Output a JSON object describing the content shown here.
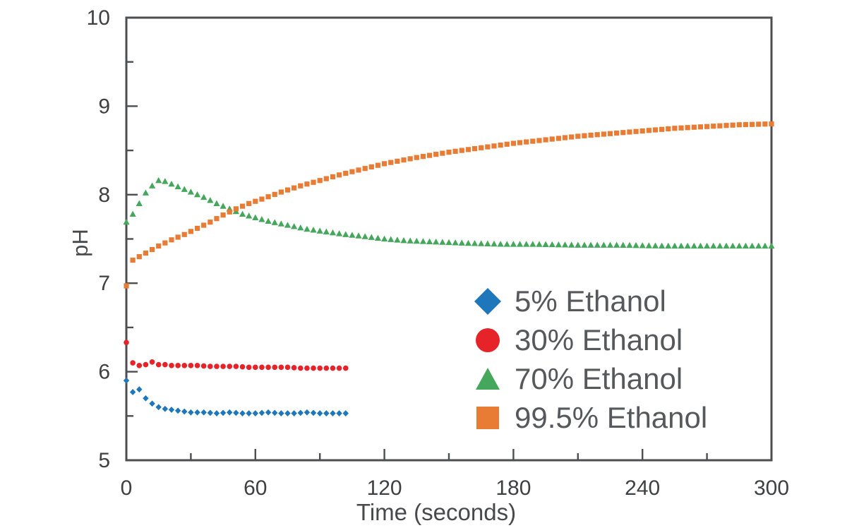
{
  "chart_data": {
    "type": "scatter",
    "title": "",
    "xlabel": "Time (seconds)",
    "ylabel": "pH",
    "xlim": [
      0,
      300
    ],
    "ylim": [
      5,
      10
    ],
    "x_major_ticks": [
      0,
      60,
      120,
      180,
      240,
      300
    ],
    "x_minor_ticks": [
      30,
      90,
      150,
      210,
      270
    ],
    "y_major_ticks": [
      10,
      9,
      8,
      7,
      6,
      5
    ],
    "y_minor_ticks": [
      9.5,
      8.5,
      7.5,
      6.5,
      5.5
    ],
    "grid": false,
    "legend_position": "inside lower right",
    "marker_interval_seconds": 3,
    "axis_color": "#4d4e50",
    "tick_label_color": "#3f4042",
    "legend_text_color": "#57585b",
    "series": [
      {
        "name": "70% Ethanol",
        "marker": "triangle",
        "color": "#45a75b",
        "points": [
          [
            0,
            7.69
          ],
          [
            3,
            7.78
          ],
          [
            6,
            7.9
          ],
          [
            9,
            8.02
          ],
          [
            12,
            8.1
          ],
          [
            15,
            8.16
          ],
          [
            18,
            8.15
          ],
          [
            21,
            8.12
          ],
          [
            24,
            8.09
          ],
          [
            27,
            8.06
          ],
          [
            30,
            8.03
          ],
          [
            36,
            7.97
          ],
          [
            42,
            7.9
          ],
          [
            48,
            7.84
          ],
          [
            54,
            7.78
          ],
          [
            60,
            7.74
          ],
          [
            66,
            7.7
          ],
          [
            72,
            7.67
          ],
          [
            78,
            7.64
          ],
          [
            84,
            7.61
          ],
          [
            90,
            7.59
          ],
          [
            96,
            7.57
          ],
          [
            102,
            7.55
          ],
          [
            110,
            7.53
          ],
          [
            120,
            7.5
          ],
          [
            130,
            7.48
          ],
          [
            140,
            7.47
          ],
          [
            150,
            7.46
          ],
          [
            160,
            7.45
          ],
          [
            175,
            7.44
          ],
          [
            190,
            7.44
          ],
          [
            210,
            7.43
          ],
          [
            230,
            7.43
          ],
          [
            250,
            7.42
          ],
          [
            270,
            7.42
          ],
          [
            300,
            7.42
          ]
        ]
      },
      {
        "name": "99.5% Ethanol",
        "marker": "square",
        "color": "#e87c34",
        "points": [
          [
            0,
            6.97
          ],
          [
            3,
            7.26
          ],
          [
            6,
            7.3
          ],
          [
            9,
            7.34
          ],
          [
            15,
            7.42
          ],
          [
            21,
            7.49
          ],
          [
            27,
            7.55
          ],
          [
            33,
            7.62
          ],
          [
            39,
            7.69
          ],
          [
            45,
            7.77
          ],
          [
            51,
            7.84
          ],
          [
            57,
            7.9
          ],
          [
            63,
            7.95
          ],
          [
            72,
            8.03
          ],
          [
            81,
            8.1
          ],
          [
            90,
            8.16
          ],
          [
            100,
            8.23
          ],
          [
            110,
            8.29
          ],
          [
            120,
            8.35
          ],
          [
            135,
            8.42
          ],
          [
            150,
            8.48
          ],
          [
            165,
            8.53
          ],
          [
            180,
            8.58
          ],
          [
            195,
            8.62
          ],
          [
            210,
            8.66
          ],
          [
            225,
            8.69
          ],
          [
            240,
            8.72
          ],
          [
            255,
            8.75
          ],
          [
            270,
            8.77
          ],
          [
            285,
            8.79
          ],
          [
            300,
            8.8
          ]
        ]
      },
      {
        "name": "30% Ethanol",
        "marker": "circle",
        "color": "#e62329",
        "points": [
          [
            0,
            6.33
          ],
          [
            3,
            6.1
          ],
          [
            6,
            6.07
          ],
          [
            9,
            6.08
          ],
          [
            12,
            6.11
          ],
          [
            15,
            6.08
          ],
          [
            18,
            6.08
          ],
          [
            21,
            6.07
          ],
          [
            27,
            6.07
          ],
          [
            33,
            6.07
          ],
          [
            39,
            6.06
          ],
          [
            45,
            6.06
          ],
          [
            51,
            6.06
          ],
          [
            57,
            6.05
          ],
          [
            63,
            6.05
          ],
          [
            69,
            6.05
          ],
          [
            75,
            6.05
          ],
          [
            81,
            6.04
          ],
          [
            87,
            6.04
          ],
          [
            93,
            6.04
          ],
          [
            99,
            6.04
          ],
          [
            102,
            6.04
          ]
        ]
      },
      {
        "name": "5% Ethanol",
        "marker": "diamond",
        "color": "#1e76bb",
        "points": [
          [
            0,
            5.9
          ],
          [
            3,
            5.77
          ],
          [
            6,
            5.8
          ],
          [
            9,
            5.7
          ],
          [
            12,
            5.64
          ],
          [
            15,
            5.6
          ],
          [
            18,
            5.58
          ],
          [
            21,
            5.57
          ],
          [
            24,
            5.56
          ],
          [
            27,
            5.55
          ],
          [
            30,
            5.54
          ],
          [
            36,
            5.54
          ],
          [
            42,
            5.53
          ],
          [
            48,
            5.54
          ],
          [
            54,
            5.53
          ],
          [
            60,
            5.53
          ],
          [
            66,
            5.54
          ],
          [
            72,
            5.53
          ],
          [
            78,
            5.53
          ],
          [
            84,
            5.54
          ],
          [
            90,
            5.53
          ],
          [
            96,
            5.53
          ],
          [
            102,
            5.53
          ]
        ]
      }
    ],
    "legend_order": [
      "5% Ethanol",
      "30% Ethanol",
      "70% Ethanol",
      "99.5% Ethanol"
    ]
  }
}
